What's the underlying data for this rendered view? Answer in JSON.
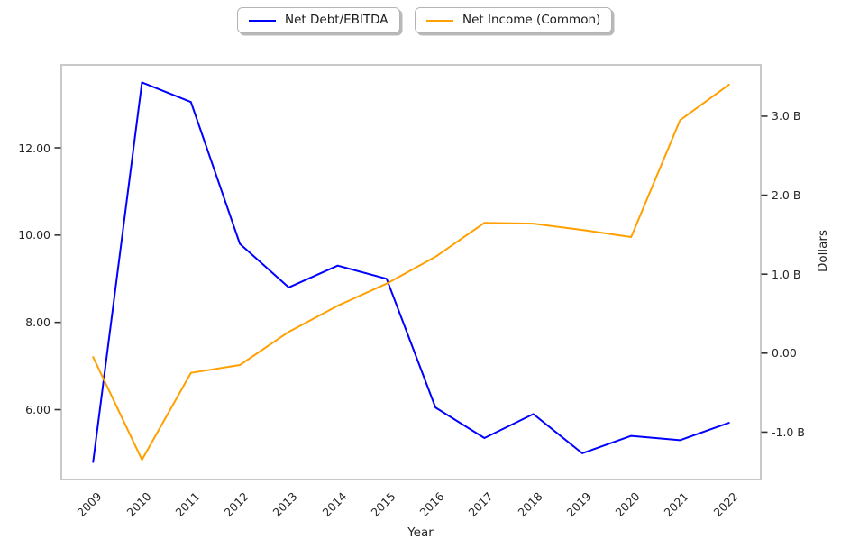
{
  "chart_data": {
    "type": "line",
    "title": "",
    "x": [
      "2009",
      "2010",
      "2011",
      "2012",
      "2013",
      "2014",
      "2015",
      "2016",
      "2017",
      "2018",
      "2019",
      "2020",
      "2021",
      "2022"
    ],
    "series": [
      {
        "name": "Net Debt/EBITDA",
        "axis": "left",
        "color": "#0000ff",
        "values": [
          4.8,
          13.5,
          13.05,
          9.8,
          8.8,
          9.3,
          9.0,
          6.05,
          5.35,
          5.9,
          5.0,
          5.4,
          5.3,
          5.7
        ]
      },
      {
        "name": "Net Income (Common)",
        "axis": "right",
        "color": "#ffa000",
        "values": [
          -0.05,
          -1.35,
          -0.25,
          -0.15,
          0.27,
          0.6,
          0.88,
          1.22,
          1.65,
          1.64,
          1.56,
          1.47,
          2.95,
          3.4
        ]
      }
    ],
    "x_axis": {
      "label": "Year"
    },
    "left_axis": {
      "range": [
        4.4,
        13.9
      ],
      "ticks": [
        {
          "value": 12,
          "label": "12.00"
        },
        {
          "value": 10,
          "label": "10.00"
        },
        {
          "value": 8,
          "label": "8.00"
        },
        {
          "value": 6,
          "label": "6.00"
        }
      ]
    },
    "right_axis": {
      "label": "Dollars",
      "range": [
        -1.6,
        3.65
      ],
      "ticks": [
        {
          "value": 3,
          "label": "3.0 B"
        },
        {
          "value": 2,
          "label": "2.0 B"
        },
        {
          "value": 1,
          "label": "1.0 B"
        },
        {
          "value": 0,
          "label": "0.00"
        },
        {
          "value": -1,
          "label": "-1.0 B"
        }
      ]
    },
    "grid": false,
    "legend_position": "top-center",
    "frame_color": "#c9c9c9"
  },
  "legend": {
    "items": [
      {
        "label": "Net Debt/EBITDA",
        "color": "#0000ff"
      },
      {
        "label": "Net Income (Common)",
        "color": "#ffa000"
      }
    ]
  }
}
